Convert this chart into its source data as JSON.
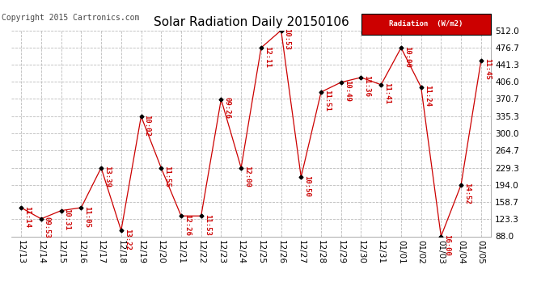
{
  "title": "Solar Radiation Daily 20150106",
  "copyright": "Copyright 2015 Cartronics.com",
  "legend_label": "Radiation  (W/m2)",
  "line_color": "#cc0000",
  "marker_color": "#000000",
  "bg_color": "#ffffff",
  "grid_color": "#bbbbbb",
  "annotation_color": "#cc0000",
  "dates": [
    "12/13",
    "12/14",
    "12/15",
    "12/16",
    "12/17",
    "12/18",
    "12/19",
    "12/20",
    "12/21",
    "12/22",
    "12/23",
    "12/24",
    "12/25",
    "12/26",
    "12/27",
    "12/28",
    "12/29",
    "12/30",
    "12/31",
    "01/01",
    "01/02",
    "01/03",
    "01/04",
    "01/05"
  ],
  "values": [
    147,
    124,
    141,
    147,
    229,
    100,
    335,
    229,
    130,
    130,
    370,
    229,
    476,
    512,
    210,
    385,
    405,
    415,
    400,
    476,
    395,
    88,
    194,
    450
  ],
  "labels": [
    "11:14",
    "09:53",
    "10:31",
    "11:05",
    "13:39",
    "13:22",
    "10:02",
    "11:55",
    "12:26",
    "11:53",
    "09:26",
    "12:00",
    "12:11",
    "10:53",
    "10:50",
    "11:51",
    "10:49",
    "11:36",
    "11:41",
    "10:00",
    "11:24",
    "16:00",
    "14:52",
    "11:45"
  ],
  "ylim": [
    88.0,
    512.0
  ],
  "yticks": [
    88.0,
    123.3,
    158.7,
    194.0,
    229.3,
    264.7,
    300.0,
    335.3,
    370.7,
    406.0,
    441.3,
    476.7,
    512.0
  ],
  "title_fontsize": 11,
  "annotation_fontsize": 6.5,
  "label_fontsize": 7.5,
  "copyright_fontsize": 7
}
